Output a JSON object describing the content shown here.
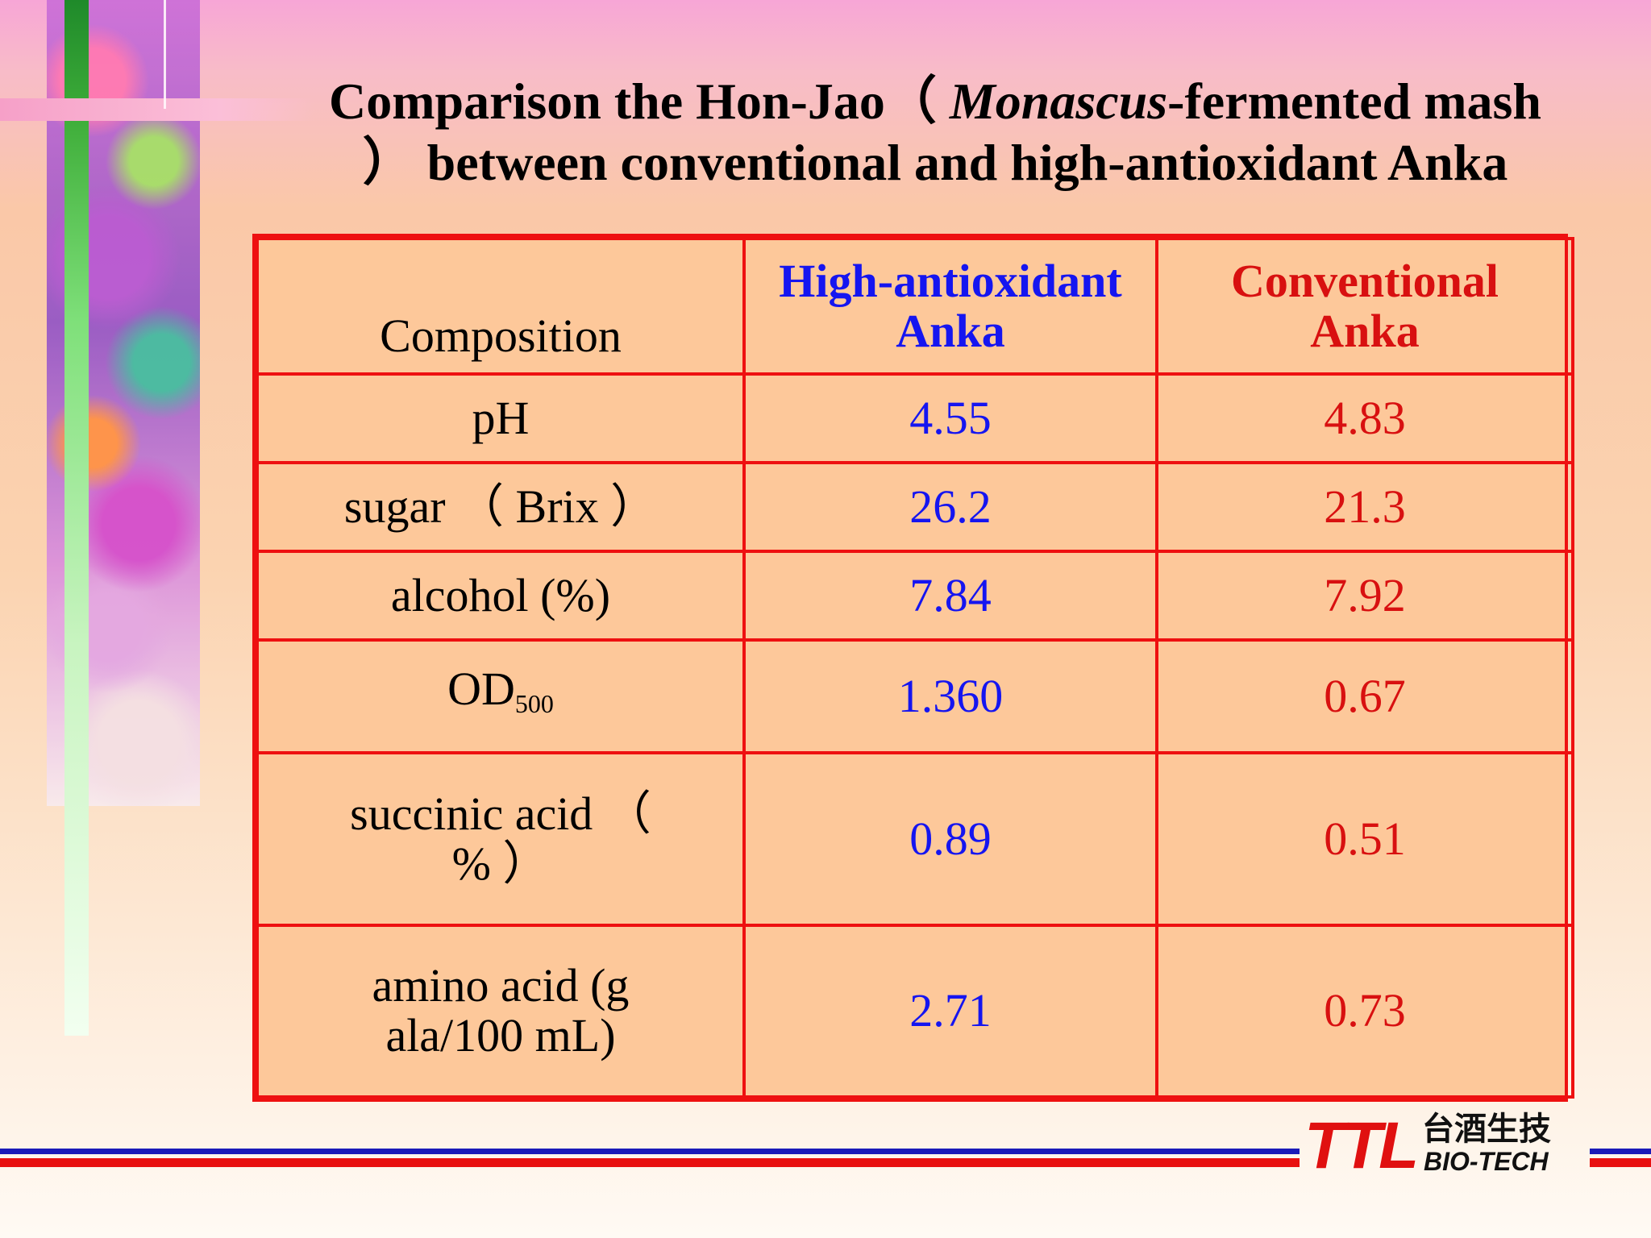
{
  "slide": {
    "title_part1": "Comparison the Hon-Jao（ ",
    "title_italic": "Monascus",
    "title_part2": "-fermented mash ） between conventional and high-antioxidant Anka"
  },
  "table": {
    "headers": {
      "composition": "Composition",
      "high": "High-antioxidant Anka",
      "conventional": "Conventional Anka"
    },
    "rows": [
      {
        "label": "pH",
        "high": "4.55",
        "conventional": "4.83"
      },
      {
        "label": "sugar （ Brix ）",
        "high": "26.2",
        "conventional": "21.3"
      },
      {
        "label": "alcohol (%)",
        "high": "7.84",
        "conventional": "7.92"
      },
      {
        "label_main": "OD",
        "label_sub": "500",
        "high": "1.360",
        "conventional": "0.67"
      },
      {
        "label": "succinic acid （ % ）",
        "high": "0.89",
        "conventional": "0.51"
      },
      {
        "label": "amino acid (g ala/100 mL)",
        "high": "2.71",
        "conventional": "0.73"
      }
    ]
  },
  "logo": {
    "mark": "TTL",
    "chinese": "台酒生技",
    "english": "BIO-TECH"
  },
  "colors": {
    "table_border": "#ee1010",
    "table_fill": "#fdc89a",
    "high_text": "#1515f0",
    "conventional_text": "#d81010"
  }
}
